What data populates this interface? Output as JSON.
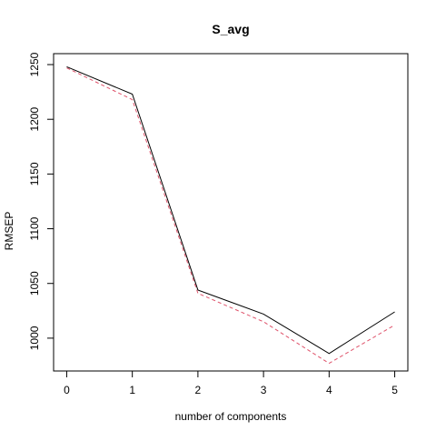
{
  "chart_data": {
    "type": "line",
    "title": "S_avg",
    "xlabel": "number of components",
    "ylabel": "RMSEP",
    "x": [
      0,
      1,
      2,
      3,
      4,
      5
    ],
    "xticks": [
      "0",
      "1",
      "2",
      "3",
      "4",
      "5"
    ],
    "yticks": [
      "1000",
      "1050",
      "1100",
      "1150",
      "1200",
      "1250"
    ],
    "ylim": [
      970,
      1260
    ],
    "xlim": [
      -0.2,
      5.2
    ],
    "grid": false,
    "series": [
      {
        "values": [
          1248,
          1223,
          1044,
          1022,
          986,
          1024
        ],
        "color": "#000000",
        "line_style": "solid"
      },
      {
        "values": [
          1247,
          1218,
          1041,
          1015,
          977,
          1012
        ],
        "color": "#DF536B",
        "line_style": "dashed"
      }
    ]
  }
}
